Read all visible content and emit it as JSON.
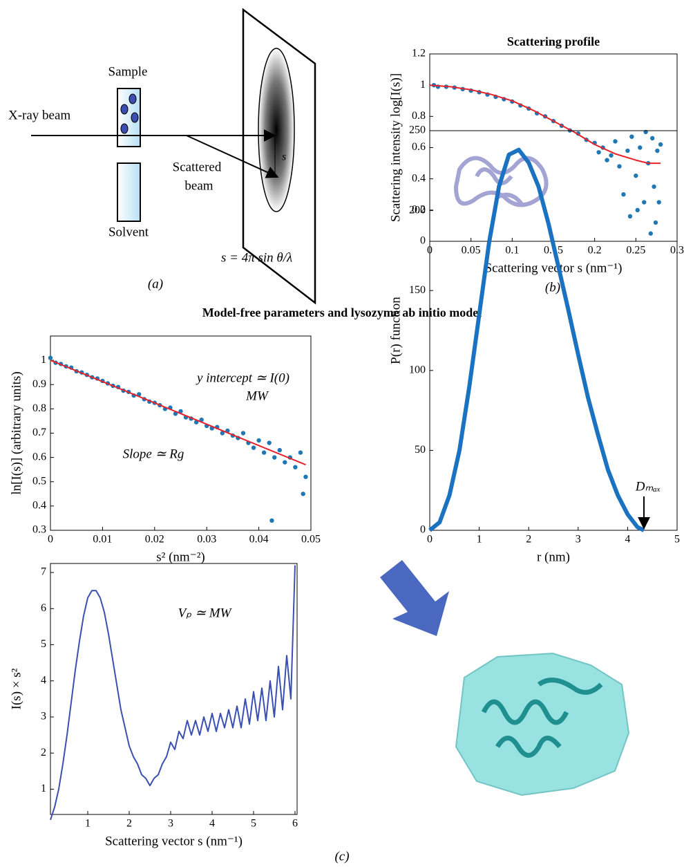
{
  "figure": {
    "heading": "Model-free parameters and lysozyme ab initio model",
    "panel_a": "(a)",
    "panel_b": "(b)",
    "panel_c": "(c)",
    "diagram": {
      "sample": "Sample",
      "beam": "X-ray beam",
      "scattered_1": "Scattered",
      "scattered_2": "beam",
      "solvent": "Solvent",
      "formula": "s = 4π sin θ/λ",
      "s": "s"
    }
  },
  "chart_data": [
    {
      "type": "scatter",
      "title": "Scattering profile",
      "x_label": "Scattering vector s (nm⁻¹)",
      "y_label": "Scattering intensity log[I(s)]",
      "xlim": [
        0,
        0.3
      ],
      "ylim": [
        0,
        1.2
      ],
      "xticks": [
        0,
        0.05,
        0.1,
        0.15,
        0.2,
        0.25,
        0.3
      ],
      "yticks": [
        0,
        0.2,
        0.4,
        0.6,
        0.8,
        1,
        1.2
      ],
      "series": [
        {
          "type": "scatter",
          "color": "#1f77b4",
          "x": [
            0.005,
            0.01,
            0.02,
            0.03,
            0.04,
            0.05,
            0.06,
            0.07,
            0.08,
            0.09,
            0.1,
            0.11,
            0.12,
            0.13,
            0.14,
            0.15,
            0.16,
            0.17,
            0.18,
            0.19,
            0.2,
            0.205,
            0.21,
            0.215,
            0.22,
            0.225,
            0.23,
            0.235,
            0.24,
            0.243,
            0.245,
            0.25,
            0.252,
            0.255,
            0.26,
            0.262,
            0.265,
            0.268,
            0.27,
            0.272,
            0.274,
            0.276,
            0.278,
            0.28
          ],
          "values": [
            1.0,
            0.99,
            0.99,
            0.985,
            0.975,
            0.965,
            0.955,
            0.94,
            0.925,
            0.91,
            0.895,
            0.87,
            0.85,
            0.82,
            0.8,
            0.77,
            0.74,
            0.71,
            0.69,
            0.65,
            0.63,
            0.57,
            0.6,
            0.52,
            0.55,
            0.64,
            0.48,
            0.3,
            0.58,
            0.16,
            0.67,
            0.42,
            0.2,
            0.6,
            0.25,
            0.7,
            0.5,
            0.05,
            0.66,
            0.35,
            0.12,
            0.58,
            0.25,
            0.62
          ]
        },
        {
          "type": "line",
          "color": "#e8202a",
          "x": [
            0,
            0.025,
            0.05,
            0.075,
            0.1,
            0.125,
            0.15,
            0.175,
            0.2,
            0.225,
            0.25,
            0.265,
            0.28
          ],
          "values": [
            1.0,
            0.99,
            0.97,
            0.94,
            0.9,
            0.84,
            0.77,
            0.7,
            0.62,
            0.56,
            0.52,
            0.5,
            0.5
          ]
        }
      ]
    },
    {
      "type": "scatter",
      "x_label": "s² (nm⁻²)",
      "y_label": "ln[I(s)] (arbitrary units)",
      "annotations": [
        "y intercept ≃ I(0)",
        "MW",
        "Slope ≃ Rg"
      ],
      "xlim": [
        0,
        0.05
      ],
      "ylim": [
        0.3,
        1.1
      ],
      "xticks": [
        0,
        0.01,
        0.02,
        0.03,
        0.04,
        0.05
      ],
      "yticks": [
        0.3,
        0.4,
        0.5,
        0.6,
        0.7,
        0.8,
        0.9,
        1.0
      ],
      "series": [
        {
          "type": "scatter",
          "color": "#1f77b4",
          "x": [
            0,
            0.001,
            0.002,
            0.003,
            0.004,
            0.005,
            0.006,
            0.007,
            0.008,
            0.009,
            0.01,
            0.011,
            0.012,
            0.013,
            0.014,
            0.015,
            0.016,
            0.017,
            0.018,
            0.019,
            0.02,
            0.021,
            0.022,
            0.023,
            0.024,
            0.025,
            0.026,
            0.027,
            0.028,
            0.029,
            0.03,
            0.031,
            0.032,
            0.033,
            0.034,
            0.035,
            0.036,
            0.037,
            0.038,
            0.039,
            0.04,
            0.041,
            0.042,
            0.0425,
            0.043,
            0.044,
            0.045,
            0.046,
            0.047,
            0.048,
            0.0485,
            0.049
          ],
          "values": [
            1.01,
            0.99,
            0.985,
            0.975,
            0.97,
            0.955,
            0.95,
            0.94,
            0.93,
            0.925,
            0.915,
            0.905,
            0.895,
            0.89,
            0.875,
            0.87,
            0.855,
            0.86,
            0.84,
            0.83,
            0.825,
            0.815,
            0.8,
            0.805,
            0.78,
            0.79,
            0.765,
            0.76,
            0.745,
            0.755,
            0.73,
            0.72,
            0.725,
            0.7,
            0.71,
            0.69,
            0.68,
            0.7,
            0.66,
            0.64,
            0.67,
            0.62,
            0.66,
            0.34,
            0.6,
            0.63,
            0.58,
            0.6,
            0.56,
            0.62,
            0.45,
            0.52
          ]
        },
        {
          "type": "line",
          "color": "#e8202a",
          "x": [
            0,
            0.049
          ],
          "values": [
            1.0,
            0.57
          ]
        }
      ]
    },
    {
      "type": "line",
      "x_label": "r  (nm)",
      "y_label": "P(r) function",
      "annotations": [
        "Dₘₐₓ"
      ],
      "xlim": [
        0,
        5
      ],
      "ylim": [
        0,
        250
      ],
      "xticks": [
        0,
        1,
        2,
        3,
        4,
        5
      ],
      "yticks": [
        0,
        50,
        100,
        150,
        200,
        250
      ],
      "series": [
        {
          "type": "line",
          "color": "#1a72c0",
          "x": [
            0,
            0.2,
            0.4,
            0.6,
            0.8,
            1.0,
            1.2,
            1.4,
            1.6,
            1.8,
            2.0,
            2.2,
            2.4,
            2.6,
            2.8,
            3.0,
            3.2,
            3.4,
            3.6,
            3.8,
            4.0,
            4.2,
            4.33
          ],
          "values": [
            0,
            5,
            22,
            50,
            90,
            135,
            180,
            215,
            235,
            238,
            230,
            215,
            192,
            165,
            138,
            110,
            83,
            60,
            38,
            22,
            10,
            2,
            0
          ]
        }
      ]
    },
    {
      "type": "line",
      "x_label": "Scattering vector s (nm⁻¹)",
      "y_label": "I(s) × s²",
      "annotations": [
        "Vₚ ≃ MW"
      ],
      "xlim": [
        0.1,
        6.05
      ],
      "ylim": [
        0.3,
        7.25
      ],
      "xticks": [
        1,
        2,
        3,
        4,
        5,
        6
      ],
      "yticks": [
        1,
        2,
        3,
        4,
        5,
        6,
        7
      ],
      "series": [
        {
          "type": "line",
          "color": "#3a4fb0",
          "x": [
            0.1,
            0.2,
            0.3,
            0.4,
            0.5,
            0.6,
            0.7,
            0.8,
            0.9,
            1.0,
            1.1,
            1.2,
            1.3,
            1.4,
            1.5,
            1.6,
            1.7,
            1.8,
            1.9,
            2.0,
            2.1,
            2.2,
            2.3,
            2.4,
            2.5,
            2.6,
            2.7,
            2.8,
            2.9,
            3.0,
            3.1,
            3.2,
            3.3,
            3.4,
            3.5,
            3.6,
            3.7,
            3.8,
            3.9,
            4.0,
            4.1,
            4.2,
            4.3,
            4.4,
            4.5,
            4.6,
            4.7,
            4.8,
            4.9,
            5.0,
            5.1,
            5.2,
            5.3,
            5.4,
            5.5,
            5.6,
            5.7,
            5.8,
            5.9,
            6.0
          ],
          "values": [
            0.15,
            0.5,
            1.0,
            1.7,
            2.5,
            3.4,
            4.3,
            5.1,
            5.8,
            6.3,
            6.5,
            6.5,
            6.3,
            5.9,
            5.3,
            4.6,
            3.9,
            3.2,
            2.7,
            2.2,
            1.9,
            1.7,
            1.4,
            1.3,
            1.1,
            1.3,
            1.4,
            1.7,
            1.9,
            2.3,
            2.1,
            2.6,
            2.4,
            2.9,
            2.5,
            2.9,
            2.5,
            3.0,
            2.6,
            3.1,
            2.6,
            3.1,
            2.7,
            3.2,
            2.7,
            3.3,
            2.7,
            3.5,
            2.8,
            3.7,
            2.9,
            3.8,
            2.9,
            4.0,
            3.0,
            4.4,
            3.2,
            4.7,
            3.5,
            7.2
          ]
        }
      ]
    }
  ]
}
